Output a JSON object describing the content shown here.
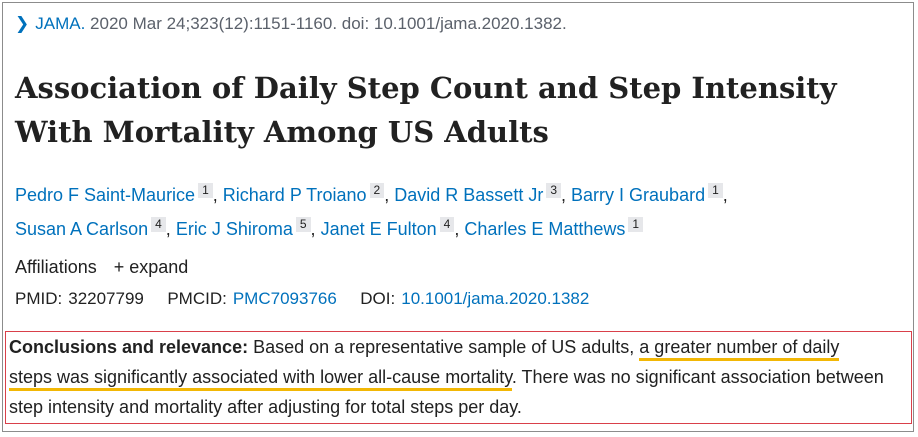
{
  "citation": {
    "journal": "JAMA.",
    "details": "2020 Mar 24;323(12):1151-1160. doi: 10.1001/jama.2020.1382."
  },
  "title": "Association of Daily Step Count and Step Intensity With Mortality Among US Adults",
  "authors": [
    {
      "name": "Pedro F Saint-Maurice",
      "aff": "1"
    },
    {
      "name": "Richard P Troiano",
      "aff": "2"
    },
    {
      "name": "David R Bassett Jr",
      "aff": "3"
    },
    {
      "name": "Barry I Graubard",
      "aff": "1"
    },
    {
      "name": "Susan A Carlson",
      "aff": "4"
    },
    {
      "name": "Eric J Shiroma",
      "aff": "5"
    },
    {
      "name": "Janet E Fulton",
      "aff": "4"
    },
    {
      "name": "Charles E Matthews",
      "aff": "1"
    }
  ],
  "affiliations": {
    "label": "Affiliations",
    "expand_label": "expand"
  },
  "ids": {
    "pmid_label": "PMID:",
    "pmid": "32207799",
    "pmcid_label": "PMCID:",
    "pmcid": "PMC7093766",
    "doi_label": "DOI:",
    "doi": "10.1001/jama.2020.1382"
  },
  "abstract": {
    "heading": "Conclusions and relevance:",
    "text_before": " Based on a representative sample of US adults, ",
    "highlight_1": "a greater number of daily",
    "highlight_2": "steps was significantly associated with lower all-cause mortality",
    "text_after": ". There was no significant association between step intensity and mortality after adjusting for total steps per day."
  },
  "colors": {
    "link": "#0071bc",
    "highlight_underline": "#f2b705",
    "box_border": "#d9404a"
  }
}
